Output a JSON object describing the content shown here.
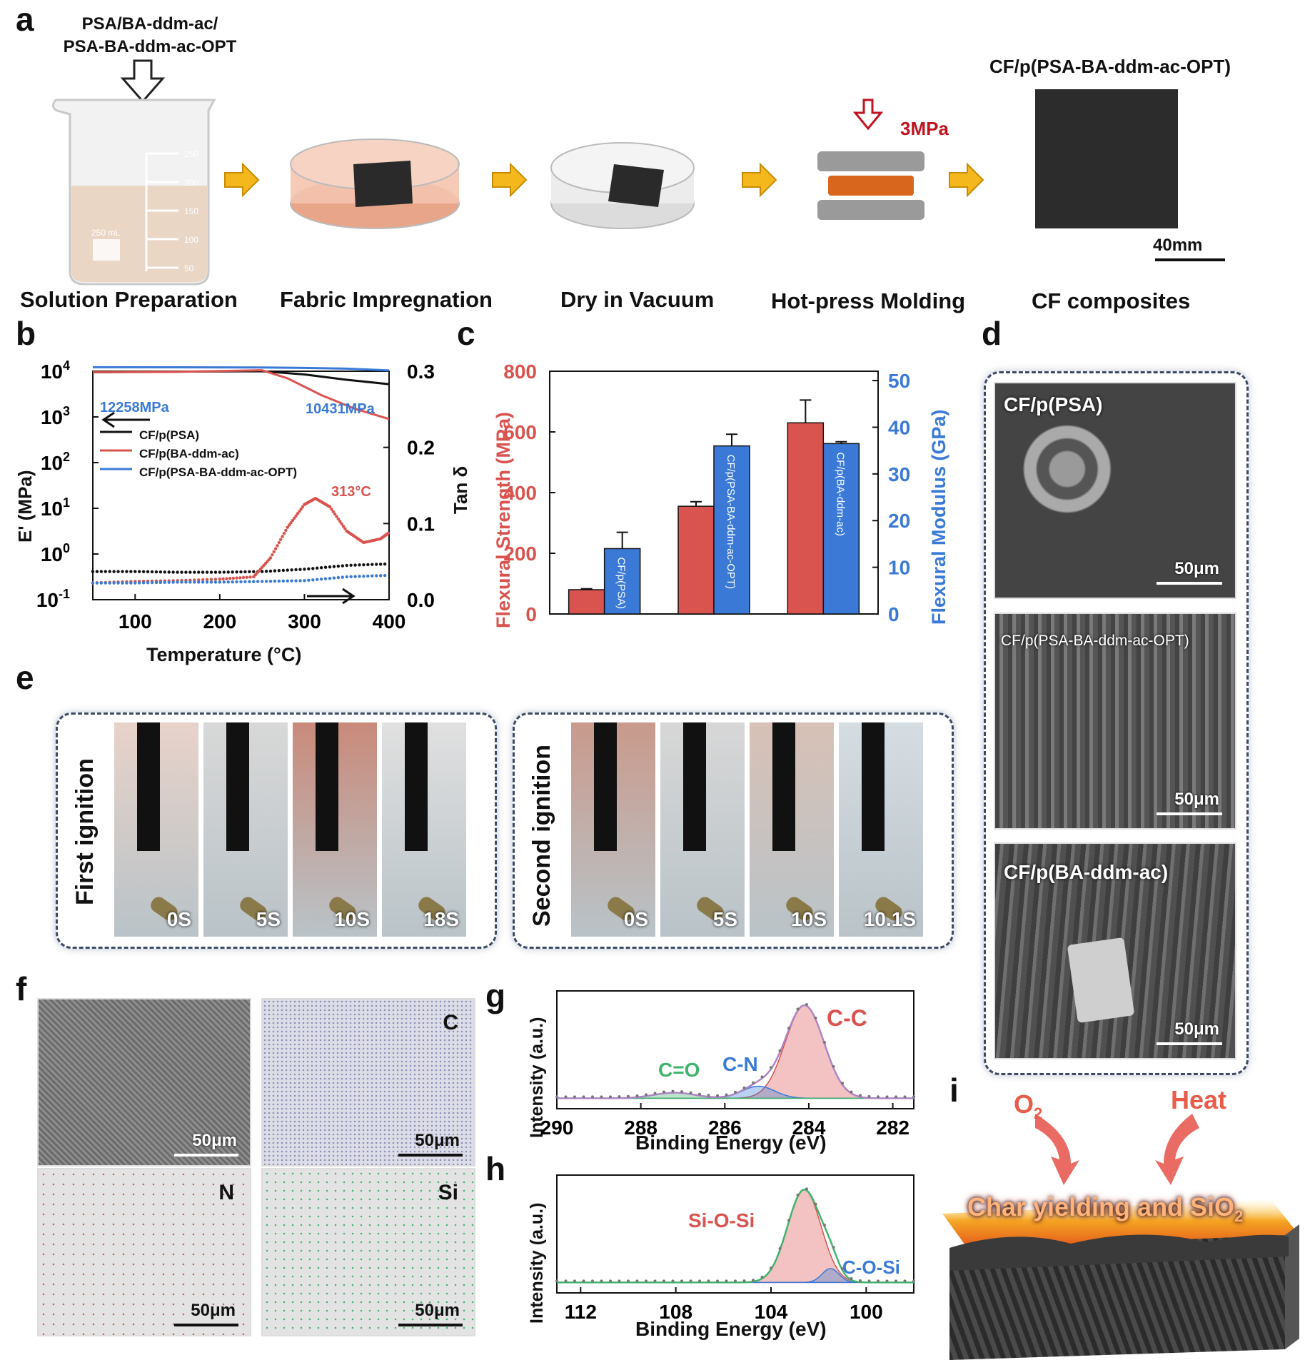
{
  "panels": {
    "a": "a",
    "b": "b",
    "c": "c",
    "d": "d",
    "e": "e",
    "f": "f",
    "g": "g",
    "h": "h",
    "i": "i"
  },
  "panel_a": {
    "input_line1": "PSA/BA-ddm-ac/",
    "input_line2": "PSA-BA-ddm-ac-OPT",
    "pressure": "3MPa",
    "product_label": "CF/p(PSA-BA-ddm-ac-OPT)",
    "scale": "40mm",
    "beaker_marks": [
      "250",
      "200",
      "150",
      "100",
      "50"
    ],
    "beaker_volume": "250 mL",
    "steps": [
      "Solution Preparation",
      "Fabric Impregnation",
      "Dry in Vacuum",
      "Hot-press Molding",
      "CF composites"
    ]
  },
  "panel_b": {
    "ylabel_left": "E' (MPa)",
    "ylabel_right": "Tan δ",
    "xlabel": "Temperature (°C)",
    "annot_left": "12258MPa",
    "annot_right": "10431MPa",
    "annot_peak": "313°C",
    "legend": [
      "CF/p(PSA)",
      "CF/p(BA-ddm-ac)",
      "CF/p(PSA-BA-ddm-ac-OPT)"
    ]
  },
  "panel_c": {
    "ylabel_left": "Flexural Strength (MPa)",
    "ylabel_right": "Flexural Modulus (GPa)"
  },
  "panel_d": {
    "labels": [
      "CF/p(PSA)",
      "CF/p(PSA-BA-ddm-ac-OPT)",
      "CF/p(BA-ddm-ac)"
    ],
    "scale": "50μm"
  },
  "panel_e": {
    "first_label": "First ignition",
    "second_label": "Second ignition",
    "first_times": [
      "0S",
      "5S",
      "10S",
      "18S"
    ],
    "second_times": [
      "0S",
      "5S",
      "10S",
      "10.1S"
    ]
  },
  "panel_f": {
    "maps": [
      "",
      "C",
      "N",
      "Si"
    ],
    "scale": "50μm"
  },
  "panel_g": {
    "ylabel": "Intensity (a.u.)",
    "xlabel": "Binding Energy (eV)",
    "peaks": {
      "cc": "C-C",
      "cn": "C-N",
      "co": "C=O"
    }
  },
  "panel_h": {
    "ylabel": "Intensity (a.u.)",
    "xlabel": "Binding Energy (eV)",
    "peaks": {
      "sios": "Si-O-Si",
      "cosi": "C-O-Si"
    }
  },
  "panel_i": {
    "o2": "O",
    "o2_sub": "2",
    "heat": "Heat",
    "text": "Char yielding and SiO",
    "text_sub": "2"
  },
  "colors": {
    "red": "#d9534f",
    "blue": "#3a7ad6",
    "green": "#41b36b",
    "orange": "#f5a623",
    "dark": "#3d4a66"
  },
  "chart_data": [
    {
      "type": "line",
      "panel": "b",
      "xlabel": "Temperature (°C)",
      "ylabel": "E' (MPa)",
      "y2label": "Tan δ",
      "xlim": [
        50,
        400
      ],
      "ylim_log10": [
        -1,
        4
      ],
      "y2lim": [
        0,
        0.3
      ],
      "xticks": [
        100,
        200,
        300,
        400
      ],
      "yticks_exp": [
        -1,
        0,
        1,
        2,
        3,
        4
      ],
      "y2ticks": [
        "0.0",
        "0.1",
        "0.2",
        "0.3"
      ],
      "series": [
        {
          "name": "CF/p(PSA)",
          "axis": "E",
          "color": "#111111",
          "x": [
            50,
            150,
            250,
            300,
            350,
            400
          ],
          "y": [
            9500,
            9800,
            10000,
            8500,
            6500,
            5200
          ]
        },
        {
          "name": "CF/p(BA-ddm-ac)",
          "axis": "E",
          "color": "#d9534f",
          "x": [
            50,
            150,
            250,
            280,
            320,
            360,
            400
          ],
          "y": [
            9500,
            9700,
            10500,
            7000,
            3000,
            1500,
            900
          ]
        },
        {
          "name": "CF/p(PSA-BA-ddm-ac-OPT)",
          "axis": "E",
          "color": "#3a7ad6",
          "x": [
            50,
            150,
            250,
            300,
            350,
            400
          ],
          "y": [
            12258,
            12200,
            12100,
            11800,
            11400,
            10431
          ]
        },
        {
          "name": "CF/p(PSA)",
          "axis": "tan",
          "color": "#111111",
          "dotted": true,
          "x": [
            50,
            100,
            150,
            200,
            250,
            300,
            350,
            400
          ],
          "y": [
            0.037,
            0.037,
            0.036,
            0.036,
            0.037,
            0.04,
            0.045,
            0.047
          ]
        },
        {
          "name": "CF/p(BA-ddm-ac)",
          "axis": "tan",
          "color": "#d9534f",
          "dotted": true,
          "x": [
            50,
            100,
            150,
            200,
            240,
            260,
            280,
            300,
            313,
            330,
            350,
            370,
            390,
            400
          ],
          "y": [
            0.022,
            0.024,
            0.025,
            0.027,
            0.03,
            0.055,
            0.095,
            0.125,
            0.133,
            0.122,
            0.09,
            0.075,
            0.08,
            0.088
          ]
        },
        {
          "name": "CF/p(PSA-BA-ddm-ac-OPT)",
          "axis": "tan",
          "color": "#3a7ad6",
          "dotted": true,
          "x": [
            50,
            100,
            150,
            200,
            250,
            300,
            350,
            400
          ],
          "y": [
            0.022,
            0.022,
            0.023,
            0.023,
            0.024,
            0.025,
            0.03,
            0.032
          ]
        }
      ]
    },
    {
      "type": "bar",
      "panel": "c",
      "categories": [
        "CF/p(PSA)",
        "CF/p(PSA-BA-ddm-ac-OPT)",
        "CF/p(BA-ddm-ac)"
      ],
      "ylabel": "Flexural Strength (MPa)",
      "y2label": "Flexural Modulus (GPa)",
      "ylim": [
        0,
        800
      ],
      "y2lim": [
        0,
        52
      ],
      "yticks": [
        0,
        200,
        400,
        600,
        800
      ],
      "y2ticks": [
        0,
        10,
        20,
        30,
        40,
        50
      ],
      "series": [
        {
          "name": "Flexural Strength",
          "axis": "left",
          "color": "#d9534f",
          "values": [
            80,
            355,
            630
          ],
          "errors": [
            3,
            15,
            75
          ]
        },
        {
          "name": "Flexural Modulus",
          "axis": "right",
          "color": "#3a7ad6",
          "values": [
            14,
            36,
            36.5
          ],
          "errors": [
            3.5,
            2.5,
            0.4
          ]
        }
      ]
    },
    {
      "type": "line",
      "panel": "g",
      "xlabel": "Binding Energy (eV)",
      "ylabel": "Intensity (a.u.)",
      "xlim": [
        290,
        281.5
      ],
      "xticks": [
        290,
        288,
        286,
        284,
        282
      ],
      "peaks": [
        {
          "name": "C-C",
          "center": 284.1,
          "height": 1.0,
          "width": 0.65,
          "color": "#d9534f"
        },
        {
          "name": "C-N",
          "center": 285.2,
          "height": 0.13,
          "width": 0.55,
          "color": "#3a7ad6"
        },
        {
          "name": "C=O",
          "center": 287.2,
          "height": 0.06,
          "width": 0.7,
          "color": "#41b36b"
        }
      ]
    },
    {
      "type": "line",
      "panel": "h",
      "xlabel": "Binding Energy (eV)",
      "ylabel": "Intensity (a.u.)",
      "xlim": [
        113,
        98
      ],
      "xticks": [
        112,
        108,
        104,
        100
      ],
      "peaks": [
        {
          "name": "Si-O-Si",
          "center": 102.6,
          "height": 1.0,
          "width": 1.0,
          "color": "#d9534f"
        },
        {
          "name": "C-O-Si",
          "center": 101.5,
          "height": 0.15,
          "width": 0.5,
          "color": "#3a7ad6"
        }
      ]
    }
  ]
}
